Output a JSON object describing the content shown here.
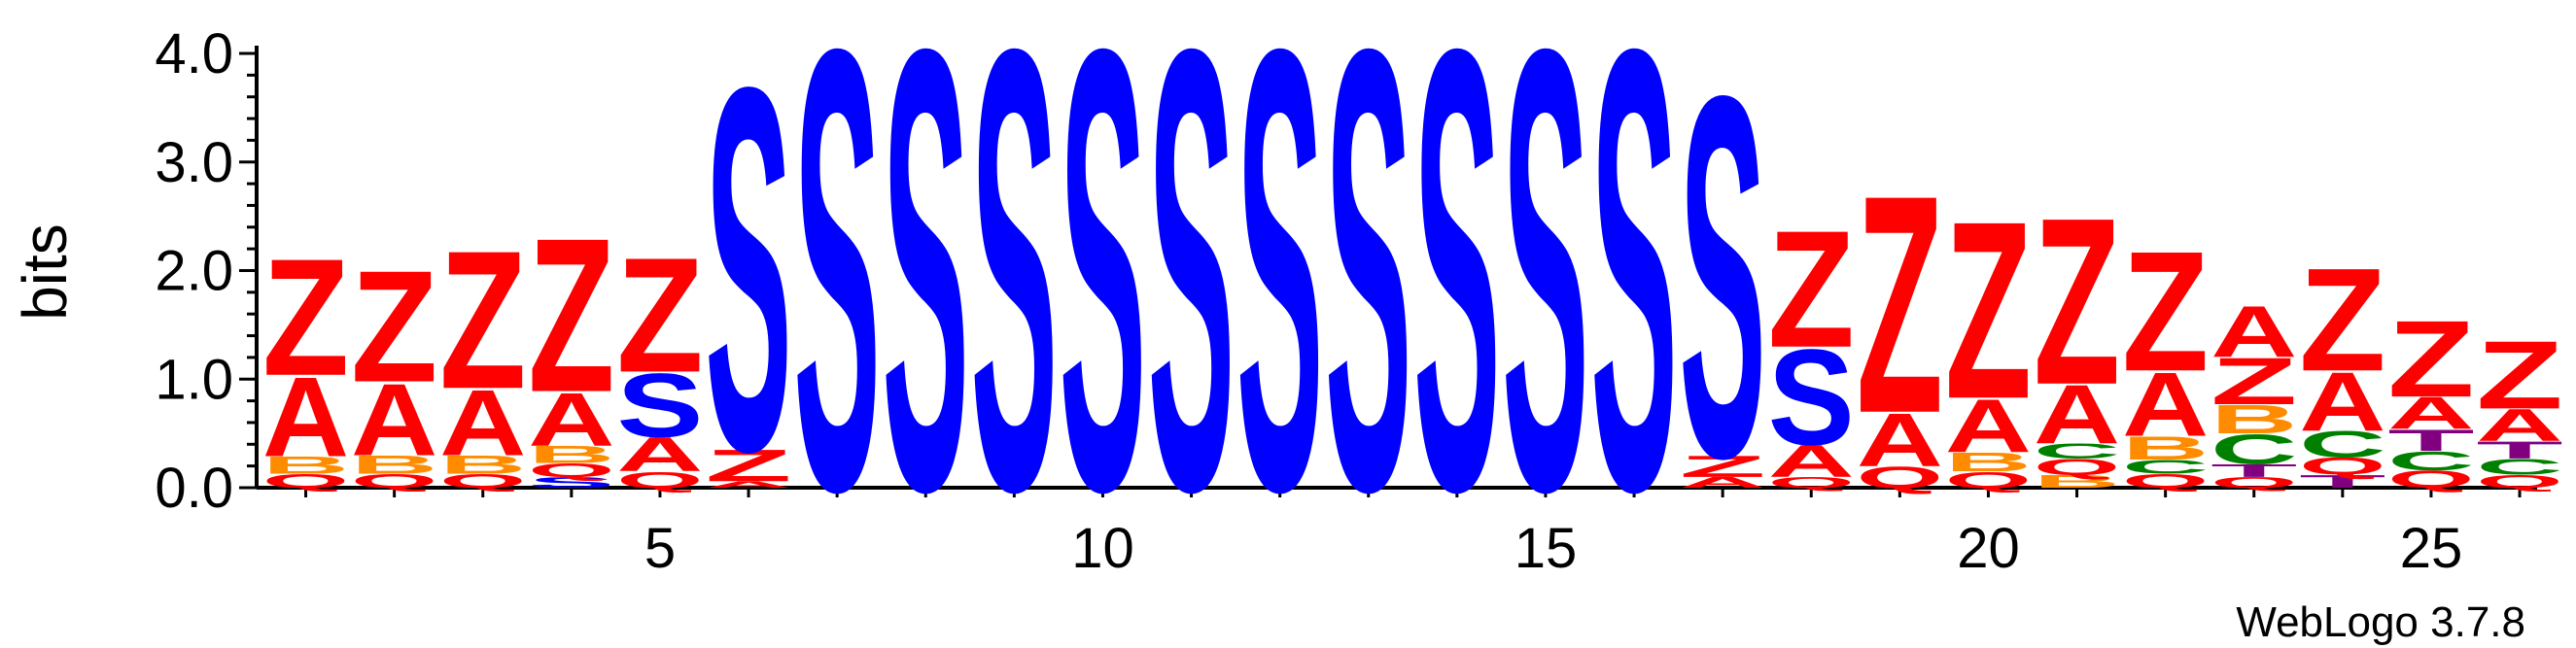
{
  "chart_data": {
    "type": "sequence-logo",
    "ylabel": "bits",
    "xlabel": "",
    "ylim": [
      0,
      4.0
    ],
    "y_ticks": [
      "0.0",
      "1.0",
      "2.0",
      "3.0",
      "4.0"
    ],
    "x_ticks": [
      5,
      10,
      15,
      20,
      25
    ],
    "footer": "WebLogo 3.7.8",
    "colors": {
      "Z": "#ff0000",
      "A": "#ff0000",
      "Q": "#ff0000",
      "S": "#0000ff",
      "B": "#ff8c00",
      "C": "#008000",
      "T": "#800080"
    },
    "positions": [
      {
        "pos": 1,
        "letters": [
          [
            "Q",
            0.13
          ],
          [
            "B",
            0.16
          ],
          [
            "A",
            0.75
          ],
          [
            "Z",
            1.1
          ]
        ]
      },
      {
        "pos": 2,
        "letters": [
          [
            "Q",
            0.13
          ],
          [
            "B",
            0.17
          ],
          [
            "A",
            0.68
          ],
          [
            "Z",
            1.05
          ]
        ]
      },
      {
        "pos": 3,
        "letters": [
          [
            "Q",
            0.13
          ],
          [
            "B",
            0.17
          ],
          [
            "A",
            0.62
          ],
          [
            "Z",
            1.3
          ]
        ]
      },
      {
        "pos": 4,
        "letters": [
          [
            "S",
            0.1
          ],
          [
            "Q",
            0.13
          ],
          [
            "B",
            0.16
          ],
          [
            "A",
            0.5
          ],
          [
            "Z",
            1.45
          ]
        ]
      },
      {
        "pos": 5,
        "letters": [
          [
            "Q",
            0.15
          ],
          [
            "A",
            0.32
          ],
          [
            "S",
            0.6
          ],
          [
            "Z",
            1.08
          ]
        ]
      },
      {
        "pos": 6,
        "letters": [
          [
            "A",
            0.06
          ],
          [
            "Z",
            0.3
          ],
          [
            "S",
            3.42
          ]
        ]
      },
      {
        "pos": 7,
        "letters": [
          [
            "S",
            4.15
          ]
        ]
      },
      {
        "pos": 8,
        "letters": [
          [
            "S",
            4.15
          ]
        ]
      },
      {
        "pos": 9,
        "letters": [
          [
            "S",
            4.15
          ]
        ]
      },
      {
        "pos": 10,
        "letters": [
          [
            "S",
            4.15
          ]
        ]
      },
      {
        "pos": 11,
        "letters": [
          [
            "S",
            4.15
          ]
        ]
      },
      {
        "pos": 12,
        "letters": [
          [
            "S",
            4.15
          ]
        ]
      },
      {
        "pos": 13,
        "letters": [
          [
            "S",
            4.15
          ]
        ]
      },
      {
        "pos": 14,
        "letters": [
          [
            "S",
            4.15
          ]
        ]
      },
      {
        "pos": 15,
        "letters": [
          [
            "S",
            4.15
          ]
        ]
      },
      {
        "pos": 16,
        "letters": [
          [
            "S",
            4.15
          ]
        ]
      },
      {
        "pos": 17,
        "letters": [
          [
            "A",
            0.1
          ],
          [
            "Z",
            0.2
          ],
          [
            "S",
            3.4
          ]
        ]
      },
      {
        "pos": 18,
        "letters": [
          [
            "Q",
            0.1
          ],
          [
            "A",
            0.3
          ],
          [
            "S",
            0.9
          ],
          [
            "Z",
            1.1
          ]
        ]
      },
      {
        "pos": 19,
        "letters": [
          [
            "Q",
            0.2
          ],
          [
            "A",
            0.5
          ],
          [
            "Z",
            2.05
          ]
        ]
      },
      {
        "pos": 20,
        "letters": [
          [
            "Q",
            0.15
          ],
          [
            "B",
            0.18
          ],
          [
            "A",
            0.5
          ],
          [
            "Z",
            1.67
          ]
        ]
      },
      {
        "pos": 21,
        "letters": [
          [
            "B",
            0.12
          ],
          [
            "Q",
            0.15
          ],
          [
            "C",
            0.14
          ],
          [
            "A",
            0.55
          ],
          [
            "Z",
            1.57
          ]
        ]
      },
      {
        "pos": 22,
        "letters": [
          [
            "Q",
            0.13
          ],
          [
            "C",
            0.13
          ],
          [
            "B",
            0.22
          ],
          [
            "A",
            0.6
          ],
          [
            "Z",
            1.13
          ]
        ]
      },
      {
        "pos": 23,
        "letters": [
          [
            "Q",
            0.1
          ],
          [
            "T",
            0.12
          ],
          [
            "C",
            0.28
          ],
          [
            "B",
            0.27
          ],
          [
            "Z",
            0.44
          ],
          [
            "A",
            0.48
          ]
        ]
      },
      {
        "pos": 24,
        "letters": [
          [
            "T",
            0.12
          ],
          [
            "Q",
            0.16
          ],
          [
            "C",
            0.25
          ],
          [
            "A",
            0.55
          ],
          [
            "Z",
            0.97
          ]
        ]
      },
      {
        "pos": 25,
        "letters": [
          [
            "Q",
            0.16
          ],
          [
            "C",
            0.18
          ],
          [
            "T",
            0.2
          ],
          [
            "A",
            0.3
          ],
          [
            "Z",
            0.72
          ]
        ]
      },
      {
        "pos": 26,
        "letters": [
          [
            "Q",
            0.12
          ],
          [
            "C",
            0.15
          ],
          [
            "T",
            0.16
          ],
          [
            "A",
            0.3
          ],
          [
            "Z",
            0.64
          ]
        ]
      }
    ]
  }
}
